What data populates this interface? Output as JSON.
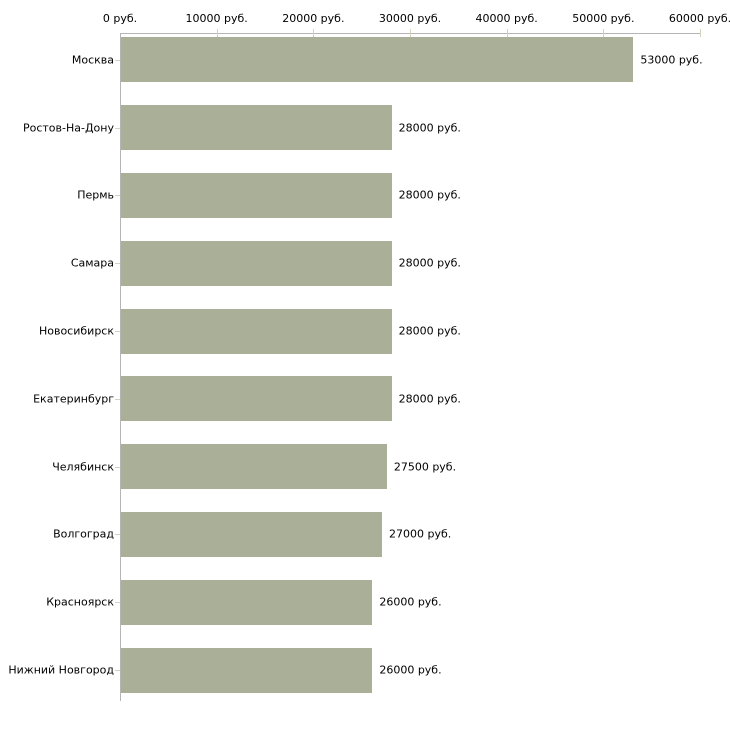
{
  "chart_data": {
    "type": "bar",
    "orientation": "horizontal",
    "title": "",
    "xlabel": "",
    "ylabel": "",
    "xlim": [
      0,
      60000
    ],
    "grid": false,
    "legend": false,
    "x_tick_labels": [
      "0 руб.",
      "10000 руб.",
      "20000 руб.",
      "30000 руб.",
      "40000 руб.",
      "50000 руб.",
      "60000 руб."
    ],
    "x_tick_values": [
      0,
      10000,
      20000,
      30000,
      40000,
      50000,
      60000
    ],
    "categories": [
      "Москва",
      "Ростов-На-Дону",
      "Пермь",
      "Самара",
      "Новосибирск",
      "Екатеринбург",
      "Челябинск",
      "Волгоград",
      "Красноярск",
      "Нижний Новгород"
    ],
    "values": [
      53000,
      28000,
      28000,
      28000,
      28000,
      28000,
      27500,
      27000,
      26000,
      26000
    ],
    "value_labels": [
      "53000 руб.",
      "28000 руб.",
      "28000 руб.",
      "28000 руб.",
      "28000 руб.",
      "28000 руб.",
      "27500 руб.",
      "27000 руб.",
      "26000 руб.",
      "26000 руб."
    ],
    "colors": {
      "bar": "#aab098",
      "axis": "#b5b5b5",
      "tick": "#d3d4bd",
      "text": "#000000",
      "background": "#ffffff"
    }
  }
}
